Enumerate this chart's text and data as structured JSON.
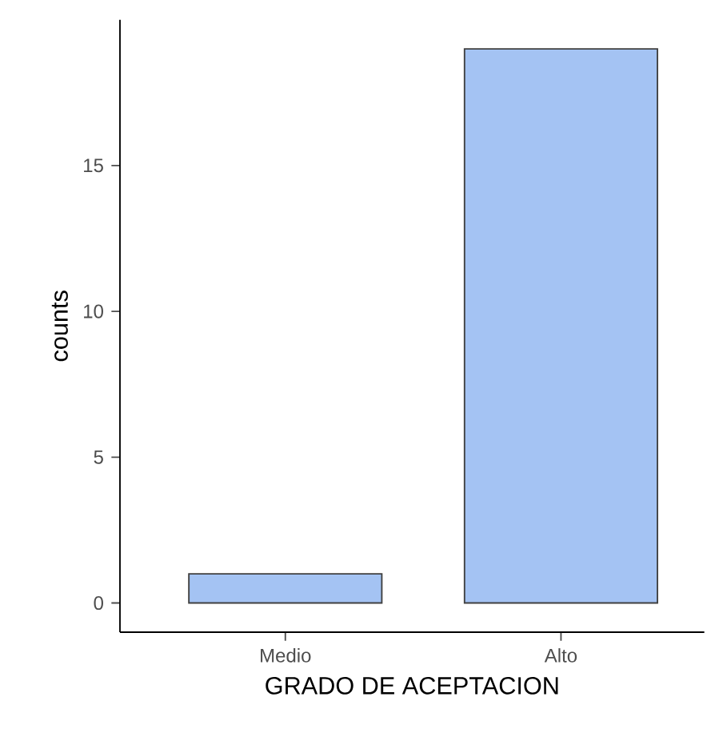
{
  "chart_data": {
    "type": "bar",
    "xlabel": "GRADO DE ACEPTACION",
    "ylabel": "counts",
    "categories": [
      "Medio",
      "Alto"
    ],
    "values": [
      1,
      19
    ],
    "color": "#a4c3f3",
    "ylim": [
      -1,
      20
    ],
    "yticks": [
      0,
      5,
      10,
      15
    ]
  }
}
